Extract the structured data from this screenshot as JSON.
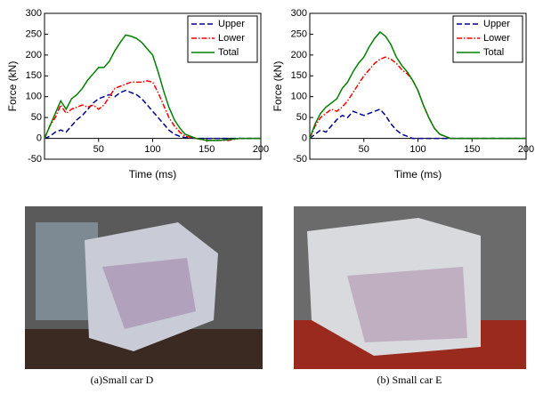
{
  "chart_data": [
    {
      "type": "line",
      "xlabel": "Time (ms)",
      "ylabel": "Force (kN)",
      "caption": "(a)Small car D",
      "xlim": [
        0,
        200
      ],
      "xticks": [
        50,
        100,
        150,
        200
      ],
      "ylim": [
        -50,
        300
      ],
      "yticks": [
        -50,
        0,
        50,
        100,
        150,
        200,
        250,
        300
      ],
      "legend": "upper-right",
      "x": [
        0,
        5,
        10,
        15,
        20,
        25,
        30,
        35,
        40,
        45,
        50,
        55,
        60,
        65,
        70,
        75,
        80,
        85,
        90,
        95,
        100,
        105,
        110,
        115,
        120,
        125,
        130,
        140,
        150,
        160,
        170,
        180,
        190,
        200
      ],
      "series": [
        {
          "name": "Upper",
          "color": "#00008b",
          "dash": "dashed",
          "values": [
            0,
            5,
            15,
            20,
            15,
            30,
            45,
            55,
            70,
            85,
            95,
            100,
            105,
            100,
            110,
            115,
            110,
            105,
            95,
            80,
            65,
            50,
            35,
            20,
            10,
            5,
            2,
            0,
            0,
            0,
            0,
            0,
            0,
            0
          ]
        },
        {
          "name": "Lower",
          "color": "#ff0000",
          "dash": "dashdot",
          "values": [
            0,
            30,
            50,
            80,
            60,
            70,
            75,
            80,
            75,
            80,
            70,
            80,
            100,
            120,
            125,
            130,
            135,
            135,
            135,
            138,
            135,
            110,
            80,
            50,
            30,
            15,
            5,
            0,
            -5,
            -5,
            -5,
            0,
            0,
            0
          ]
        },
        {
          "name": "Total",
          "color": "#008000",
          "dash": "solid",
          "values": [
            0,
            30,
            60,
            90,
            70,
            95,
            105,
            120,
            140,
            155,
            170,
            170,
            185,
            210,
            230,
            248,
            245,
            240,
            230,
            215,
            200,
            160,
            115,
            75,
            45,
            25,
            10,
            0,
            -5,
            -5,
            -3,
            0,
            0,
            0
          ]
        }
      ]
    },
    {
      "type": "line",
      "xlabel": "Time (ms)",
      "ylabel": "Force (kN)",
      "caption": "(b) Small car E",
      "xlim": [
        0,
        200
      ],
      "xticks": [
        50,
        100,
        150,
        200
      ],
      "ylim": [
        -50,
        300
      ],
      "yticks": [
        -50,
        0,
        50,
        100,
        150,
        200,
        250,
        300
      ],
      "legend": "upper-right",
      "x": [
        0,
        5,
        10,
        15,
        20,
        25,
        30,
        35,
        40,
        45,
        50,
        55,
        60,
        65,
        70,
        75,
        80,
        85,
        90,
        95,
        100,
        105,
        110,
        115,
        120,
        125,
        130,
        140,
        150,
        160,
        170,
        180,
        190,
        200
      ],
      "series": [
        {
          "name": "Upper",
          "color": "#00008b",
          "dash": "dashed",
          "values": [
            0,
            10,
            20,
            15,
            30,
            45,
            55,
            50,
            65,
            60,
            55,
            60,
            65,
            70,
            55,
            35,
            20,
            10,
            5,
            0,
            0,
            0,
            0,
            0,
            0,
            0,
            0,
            0,
            0,
            0,
            0,
            0,
            0,
            0
          ]
        },
        {
          "name": "Lower",
          "color": "#ff0000",
          "dash": "dashdot",
          "values": [
            0,
            30,
            50,
            60,
            70,
            65,
            75,
            90,
            110,
            130,
            150,
            165,
            180,
            190,
            195,
            190,
            180,
            165,
            155,
            140,
            115,
            80,
            50,
            25,
            10,
            5,
            0,
            0,
            0,
            0,
            0,
            0,
            0,
            0
          ]
        },
        {
          "name": "Total",
          "color": "#008000",
          "dash": "solid",
          "values": [
            0,
            35,
            60,
            75,
            85,
            95,
            120,
            135,
            160,
            180,
            195,
            220,
            240,
            255,
            245,
            225,
            195,
            175,
            160,
            140,
            115,
            80,
            50,
            25,
            10,
            5,
            0,
            0,
            0,
            0,
            0,
            0,
            0,
            0
          ]
        }
      ]
    }
  ]
}
